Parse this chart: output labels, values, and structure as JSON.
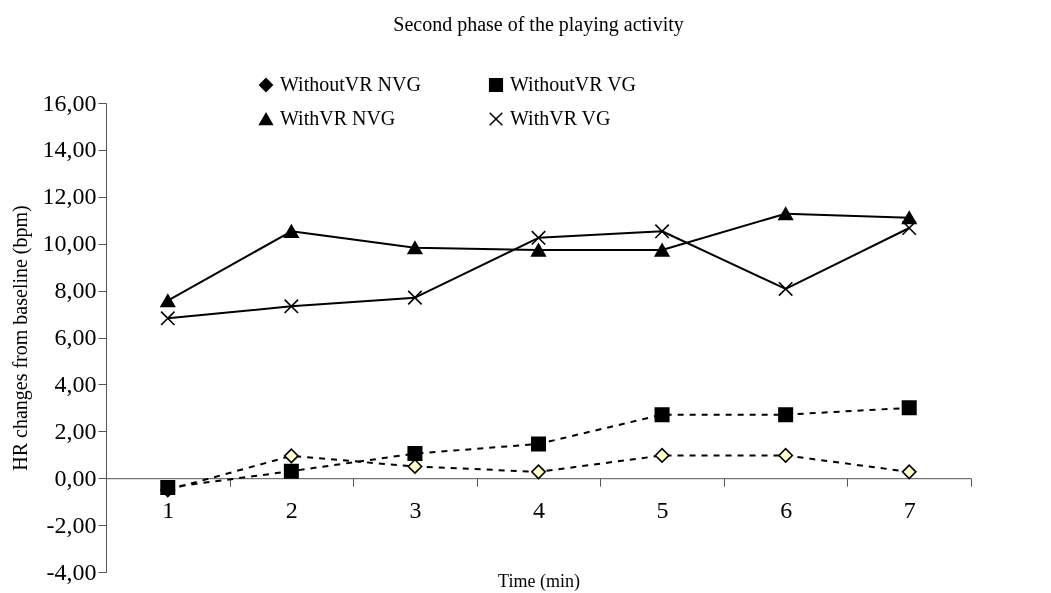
{
  "chart_data": {
    "type": "line",
    "title": "Second phase of the playing activity",
    "xlabel": "Time (min)",
    "ylabel": "HR changes from baseline (bpm)",
    "categories": [
      "1",
      "2",
      "3",
      "4",
      "5",
      "6",
      "7"
    ],
    "series": [
      {
        "name": "WithoutVR  NVG",
        "color": "#000000",
        "colors": [
          "#ffffcc",
          "#ffffcc",
          "#ffffcc",
          "#ffffcc",
          "#ffffcc",
          "#ffffcc",
          "#ffffcc"
        ],
        "marker": "diamond",
        "line_style": "dashed",
        "values": [
          -0.5,
          0.95,
          0.5,
          0.27,
          0.97,
          0.97,
          0.27
        ]
      },
      {
        "name": "WithoutVR  VG",
        "color": "#000000",
        "marker": "square",
        "line_style": "dashed",
        "values": [
          -0.4,
          0.3,
          1.05,
          1.46,
          2.71,
          2.71,
          3.0
        ]
      },
      {
        "name": "WithVR NVG",
        "color": "#000000",
        "marker": "triangle",
        "line_style": "solid",
        "values": [
          7.57,
          10.53,
          9.83,
          9.73,
          9.73,
          11.28,
          11.11
        ]
      },
      {
        "name": "WithVR VG",
        "color": "#000000",
        "marker": "cross",
        "line_style": "solid",
        "values": [
          6.82,
          7.33,
          7.7,
          10.25,
          10.53,
          8.07,
          10.67
        ]
      }
    ],
    "ylim": [
      -4,
      16
    ],
    "yticks": [
      {
        "value": -4,
        "label": "-4,00"
      },
      {
        "value": -2,
        "label": "-2,00"
      },
      {
        "value": 0,
        "label": "0,00"
      },
      {
        "value": 2,
        "label": "2,00"
      },
      {
        "value": 4,
        "label": "4,00"
      },
      {
        "value": 6,
        "label": "6,00"
      },
      {
        "value": 8,
        "label": "8,00"
      },
      {
        "value": 10,
        "label": "10,00"
      },
      {
        "value": 12,
        "label": "12,00"
      },
      {
        "value": 14,
        "label": "14,00"
      },
      {
        "value": 16,
        "label": "16,00"
      }
    ],
    "grid": false,
    "legend": "top"
  }
}
